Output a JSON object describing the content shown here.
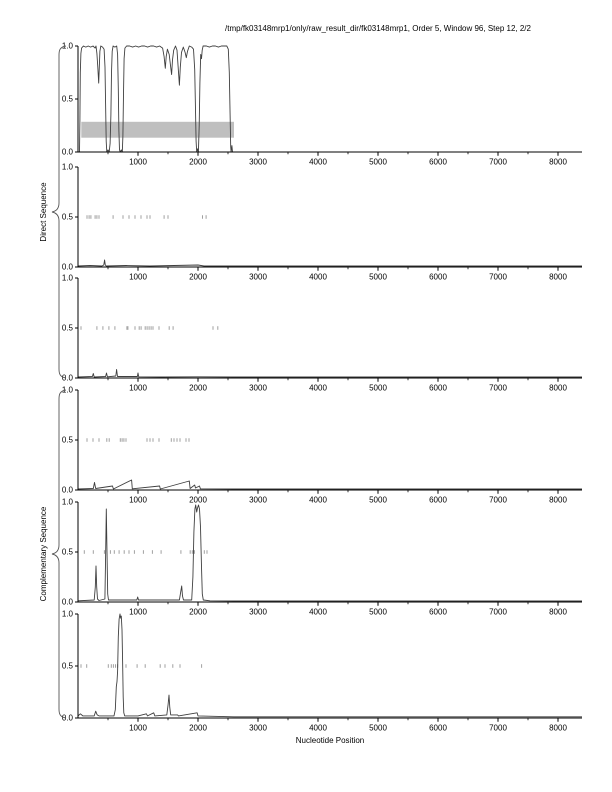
{
  "title": "/tmp/fk03148mrp1/only/raw_result_dir/fk03148mrp1, Order 5, Window 96, Step 12, 2/2",
  "xlabel": "Nucleotide Position",
  "groups": [
    {
      "label": "Direct Sequence",
      "panel_ids": [
        "direct-1",
        "direct-2",
        "direct-3"
      ]
    },
    {
      "label": "Complementary Sequence",
      "panel_ids": [
        "complementary-1",
        "complementary-2",
        "complementary-3"
      ]
    }
  ],
  "colors": {
    "curve": "#3f3f3f",
    "marker": "#a0a0a0",
    "band": "#bfbfbf",
    "axis": "#000000",
    "brace": "#555555",
    "background": "#ffffff"
  },
  "chart_data": {
    "type": "line",
    "xlim": [
      0,
      8400
    ],
    "ylim": [
      0,
      1
    ],
    "xticks": [
      1000,
      2000,
      3000,
      4000,
      5000,
      6000,
      7000,
      8000
    ],
    "xminorticks": [
      500,
      1500,
      2500,
      3500,
      4500,
      5500,
      6500,
      7500
    ],
    "yticks": [
      {
        "v": 0,
        "label": "0.0"
      },
      {
        "v": 0.5,
        "label": "0.5"
      },
      {
        "v": 1,
        "label": "1.0"
      }
    ],
    "grid": false,
    "legend": "none",
    "panels": [
      {
        "id": "direct-1",
        "band": {
          "x0": 55,
          "x1": 2600,
          "y0": 0.135,
          "y1": 0.285
        },
        "markers_y": 0.5,
        "markers_x": [],
        "line": [
          [
            25,
            0.0
          ],
          [
            32,
            0.3
          ],
          [
            38,
            0.75
          ],
          [
            48,
            0.93
          ],
          [
            60,
            0.98
          ],
          [
            90,
            1.0
          ],
          [
            130,
            0.99
          ],
          [
            170,
            1.0
          ],
          [
            210,
            0.99
          ],
          [
            250,
            1.0
          ],
          [
            285,
            0.98
          ],
          [
            300,
            1.0
          ],
          [
            315,
            0.93
          ],
          [
            330,
            0.8
          ],
          [
            345,
            0.65
          ],
          [
            355,
            0.8
          ],
          [
            365,
            0.95
          ],
          [
            380,
            1.0
          ],
          [
            410,
            0.99
          ],
          [
            435,
            0.97
          ],
          [
            450,
            0.8
          ],
          [
            460,
            0.45
          ],
          [
            470,
            0.1
          ],
          [
            480,
            0.0
          ],
          [
            500,
            0.02
          ],
          [
            520,
            0.0
          ],
          [
            535,
            0.08
          ],
          [
            548,
            0.35
          ],
          [
            558,
            0.75
          ],
          [
            570,
            0.95
          ],
          [
            585,
            1.0
          ],
          [
            615,
            0.99
          ],
          [
            645,
            1.0
          ],
          [
            660,
            0.92
          ],
          [
            672,
            0.6
          ],
          [
            682,
            0.2
          ],
          [
            692,
            0.02
          ],
          [
            705,
            0.0
          ],
          [
            722,
            0.02
          ],
          [
            738,
            0.0
          ],
          [
            748,
            0.15
          ],
          [
            758,
            0.55
          ],
          [
            768,
            0.88
          ],
          [
            782,
            0.98
          ],
          [
            810,
            1.0
          ],
          [
            860,
            1.0
          ],
          [
            910,
            0.99
          ],
          [
            960,
            1.0
          ],
          [
            1010,
            0.99
          ],
          [
            1060,
            1.0
          ],
          [
            1110,
            1.0
          ],
          [
            1160,
            0.99
          ],
          [
            1210,
            1.0
          ],
          [
            1260,
            1.0
          ],
          [
            1310,
            0.99
          ],
          [
            1360,
            1.0
          ],
          [
            1410,
            0.98
          ],
          [
            1435,
            0.9
          ],
          [
            1455,
            0.79
          ],
          [
            1470,
            0.9
          ],
          [
            1490,
            0.97
          ],
          [
            1520,
            0.92
          ],
          [
            1545,
            0.8
          ],
          [
            1560,
            0.73
          ],
          [
            1575,
            0.87
          ],
          [
            1595,
            0.96
          ],
          [
            1625,
            1.0
          ],
          [
            1650,
            0.96
          ],
          [
            1672,
            0.78
          ],
          [
            1690,
            0.63
          ],
          [
            1705,
            0.8
          ],
          [
            1725,
            0.94
          ],
          [
            1755,
            0.99
          ],
          [
            1785,
            0.94
          ],
          [
            1805,
            0.89
          ],
          [
            1825,
            0.95
          ],
          [
            1855,
            1.0
          ],
          [
            1895,
            0.99
          ],
          [
            1925,
            0.97
          ],
          [
            1945,
            0.78
          ],
          [
            1958,
            0.4
          ],
          [
            1968,
            0.1
          ],
          [
            1978,
            0.0
          ],
          [
            1992,
            0.03
          ],
          [
            2006,
            0.0
          ],
          [
            2020,
            0.25
          ],
          [
            2032,
            0.65
          ],
          [
            2045,
            0.92
          ],
          [
            2058,
            0.88
          ],
          [
            2070,
            0.96
          ],
          [
            2085,
            1.0
          ],
          [
            2140,
            1.0
          ],
          [
            2190,
            0.99
          ],
          [
            2240,
            1.0
          ],
          [
            2290,
            1.0
          ],
          [
            2340,
            0.99
          ],
          [
            2390,
            1.0
          ],
          [
            2440,
            1.0
          ],
          [
            2480,
            1.0
          ],
          [
            2505,
            0.97
          ],
          [
            2522,
            0.75
          ],
          [
            2535,
            0.35
          ],
          [
            2545,
            0.05
          ],
          [
            2552,
            0.0
          ],
          [
            2565,
            0.06
          ],
          [
            2575,
            0.0
          ],
          [
            3000,
            0.0
          ],
          [
            5000,
            0.0
          ],
          [
            8400,
            0.0
          ]
        ]
      },
      {
        "id": "direct-2",
        "band": null,
        "markers_y": 0.5,
        "markers_x": [
          150,
          185,
          215,
          285,
          315,
          350,
          585,
          750,
          850,
          950,
          1050,
          1150,
          1200,
          1435,
          1500,
          2075,
          2135
        ],
        "line": [
          [
            0,
            0.01
          ],
          [
            200,
            0.015
          ],
          [
            400,
            0.01
          ],
          [
            430,
            0.02
          ],
          [
            443,
            0.07
          ],
          [
            455,
            0.02
          ],
          [
            470,
            0.01
          ],
          [
            800,
            0.015
          ],
          [
            1200,
            0.01
          ],
          [
            1600,
            0.015
          ],
          [
            2000,
            0.02
          ],
          [
            2100,
            0.01
          ],
          [
            2600,
            0.01
          ],
          [
            8400,
            0.01
          ]
        ]
      },
      {
        "id": "direct-3",
        "band": null,
        "markers_y": 0.5,
        "markers_x": [
          50,
          315,
          415,
          515,
          615,
          815,
          832,
          950,
          1020,
          1052,
          1120,
          1152,
          1185,
          1218,
          1250,
          1350,
          1520,
          1585,
          2250,
          2330
        ],
        "line": [
          [
            0,
            0.01
          ],
          [
            240,
            0.015
          ],
          [
            255,
            0.045
          ],
          [
            270,
            0.01
          ],
          [
            460,
            0.015
          ],
          [
            475,
            0.05
          ],
          [
            490,
            0.012
          ],
          [
            630,
            0.02
          ],
          [
            643,
            0.085
          ],
          [
            658,
            0.015
          ],
          [
            990,
            0.015
          ],
          [
            1000,
            0.05
          ],
          [
            1012,
            0.012
          ],
          [
            1400,
            0.01
          ],
          [
            2000,
            0.012
          ],
          [
            2600,
            0.01
          ],
          [
            8400,
            0.01
          ]
        ]
      },
      {
        "id": "complementary-1",
        "band": null,
        "markers_y": 0.5,
        "markers_x": [
          150,
          250,
          350,
          480,
          520,
          705,
          735,
          765,
          800,
          1150,
          1200,
          1250,
          1350,
          1555,
          1600,
          1650,
          1700,
          1800,
          1850
        ],
        "line": [
          [
            0,
            0.01
          ],
          [
            255,
            0.015
          ],
          [
            275,
            0.075
          ],
          [
            295,
            0.015
          ],
          [
            575,
            0.04
          ],
          [
            590,
            0.01
          ],
          [
            893,
            0.1
          ],
          [
            905,
            0.012
          ],
          [
            1360,
            0.04
          ],
          [
            1372,
            0.01
          ],
          [
            1855,
            0.09
          ],
          [
            1868,
            0.015
          ],
          [
            1945,
            0.05
          ],
          [
            1958,
            0.02
          ],
          [
            2025,
            0.04
          ],
          [
            2040,
            0.012
          ],
          [
            2600,
            0.01
          ],
          [
            8400,
            0.01
          ]
        ]
      },
      {
        "id": "complementary-2",
        "band": null,
        "markers_y": 0.5,
        "markers_x": [
          105,
          255,
          440,
          540,
          605,
          685,
          770,
          850,
          940,
          1090,
          1240,
          1385,
          1715,
          1870,
          1905,
          1940,
          2105,
          2150
        ],
        "line": [
          [
            0,
            0.012
          ],
          [
            270,
            0.02
          ],
          [
            288,
            0.15
          ],
          [
            300,
            0.36
          ],
          [
            312,
            0.15
          ],
          [
            325,
            0.03
          ],
          [
            350,
            0.015
          ],
          [
            448,
            0.03
          ],
          [
            460,
            0.45
          ],
          [
            472,
            0.93
          ],
          [
            484,
            0.5
          ],
          [
            495,
            0.08
          ],
          [
            508,
            0.02
          ],
          [
            980,
            0.02
          ],
          [
            995,
            0.05
          ],
          [
            1008,
            0.02
          ],
          [
            1690,
            0.02
          ],
          [
            1712,
            0.1
          ],
          [
            1728,
            0.16
          ],
          [
            1742,
            0.06
          ],
          [
            1758,
            0.02
          ],
          [
            1895,
            0.02
          ],
          [
            1915,
            0.25
          ],
          [
            1932,
            0.7
          ],
          [
            1948,
            0.93
          ],
          [
            1962,
            0.97
          ],
          [
            1978,
            0.9
          ],
          [
            1992,
            0.94
          ],
          [
            2008,
            0.97
          ],
          [
            2025,
            0.93
          ],
          [
            2042,
            0.75
          ],
          [
            2058,
            0.35
          ],
          [
            2072,
            0.08
          ],
          [
            2088,
            0.02
          ],
          [
            2200,
            0.012
          ],
          [
            2600,
            0.01
          ],
          [
            8400,
            0.01
          ]
        ]
      },
      {
        "id": "complementary-3",
        "band": null,
        "markers_y": 0.5,
        "markers_x": [
          50,
          145,
          505,
          555,
          590,
          625,
          660,
          800,
          985,
          1120,
          1370,
          1450,
          1580,
          1700,
          2060
        ],
        "line": [
          [
            0,
            0.02
          ],
          [
            40,
            0.04
          ],
          [
            80,
            0.02
          ],
          [
            270,
            0.02
          ],
          [
            295,
            0.065
          ],
          [
            320,
            0.03
          ],
          [
            350,
            0.02
          ],
          [
            600,
            0.02
          ],
          [
            622,
            0.08
          ],
          [
            638,
            0.3
          ],
          [
            650,
            0.35
          ],
          [
            660,
            0.45
          ],
          [
            672,
            0.78
          ],
          [
            685,
            0.95
          ],
          [
            700,
            1.0
          ],
          [
            712,
            0.96
          ],
          [
            722,
            0.98
          ],
          [
            734,
            0.85
          ],
          [
            744,
            0.55
          ],
          [
            754,
            0.2
          ],
          [
            764,
            0.05
          ],
          [
            778,
            0.02
          ],
          [
            1000,
            0.02
          ],
          [
            1140,
            0.04
          ],
          [
            1158,
            0.02
          ],
          [
            1262,
            0.05
          ],
          [
            1280,
            0.02
          ],
          [
            1480,
            0.03
          ],
          [
            1502,
            0.13
          ],
          [
            1516,
            0.22
          ],
          [
            1530,
            0.1
          ],
          [
            1545,
            0.03
          ],
          [
            1660,
            0.03
          ],
          [
            1675,
            0.02
          ],
          [
            1985,
            0.05
          ],
          [
            2000,
            0.02
          ],
          [
            2600,
            0.012
          ],
          [
            8400,
            0.012
          ]
        ]
      }
    ]
  }
}
